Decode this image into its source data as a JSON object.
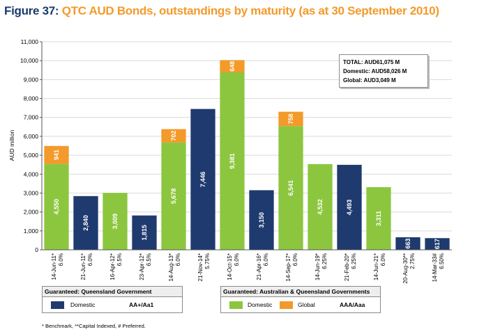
{
  "figure": {
    "number": "Figure 37:",
    "title": "QTC AUD Bonds, outstandings by maturity (as at 30 September 2010)"
  },
  "totals_box": {
    "total": "TOTAL: AUD61,075 M",
    "domestic": "Domestic: AUD58,026 M",
    "global": "Global: AUD3,049 M"
  },
  "legends": {
    "left": {
      "header": "Guaranteed: Queensland Government",
      "item": "Domestic",
      "rating": "AA+/Aa1"
    },
    "right": {
      "header": "Guaranteed: Australian & Queensland Governments",
      "item1": "Domestic",
      "item2": "Global",
      "rating": "AAA/Aaa"
    }
  },
  "footnote": "* Benchmark, **Capital Indexed, # Preferred.",
  "colors": {
    "qld_domestic": "#1f3a6e",
    "aus_domestic": "#8cc63f",
    "aus_global": "#f39a2a",
    "title_blue": "#1a3a6b",
    "title_orange": "#f39a2a"
  },
  "chart_data": {
    "type": "bar",
    "stacked": true,
    "ylabel": "AUD million",
    "ylim": [
      0,
      11000
    ],
    "yticks": [
      0,
      1000,
      2000,
      3000,
      4000,
      5000,
      6000,
      7000,
      8000,
      9000,
      10000,
      11000
    ],
    "ytick_labels": [
      "0",
      "1,000",
      "2,000",
      "3,000",
      "4,000",
      "5,000",
      "6,000",
      "7,000",
      "8,000",
      "9,000",
      "10,000",
      "11,000"
    ],
    "grid": true,
    "categories": [
      "14-Jun-11*",
      "21-Jun-11*",
      "16-Apr-12*",
      "23-Apr-12*",
      "14-Aug-13*",
      "21-Nov-14*",
      "14-Oct-15*",
      "21-Apr-16*",
      "14-Sep-17*",
      "14-Jun-19*",
      "21-Feb-20*",
      "14-Jun-21*",
      "20-Aug-30**",
      "14-Mar-33#"
    ],
    "coupons": [
      "6.0%",
      "6.0%",
      "6.5%",
      "6.5%",
      "6.0%",
      "5.75%",
      "6.0%",
      "6.0%",
      "6.0%",
      "6.25%",
      "6.25%",
      "6.0%",
      "2.75%",
      "6.50%"
    ],
    "bars": [
      {
        "guarantee": "aus",
        "domestic": 4550,
        "domestic_label": "4,550",
        "global": 941,
        "global_label": "941"
      },
      {
        "guarantee": "qld",
        "domestic": 2840,
        "domestic_label": "2,840",
        "global": 0,
        "global_label": ""
      },
      {
        "guarantee": "aus",
        "domestic": 3009,
        "domestic_label": "3,009",
        "global": 0,
        "global_label": ""
      },
      {
        "guarantee": "qld",
        "domestic": 1815,
        "domestic_label": "1,815",
        "global": 0,
        "global_label": ""
      },
      {
        "guarantee": "aus",
        "domestic": 5678,
        "domestic_label": "5,678",
        "global": 702,
        "global_label": "702"
      },
      {
        "guarantee": "qld",
        "domestic": 7446,
        "domestic_label": "7,446",
        "global": 0,
        "global_label": ""
      },
      {
        "guarantee": "aus",
        "domestic": 9381,
        "domestic_label": "9,381",
        "global": 648,
        "global_label": "648"
      },
      {
        "guarantee": "qld",
        "domestic": 3150,
        "domestic_label": "3,150",
        "global": 0,
        "global_label": ""
      },
      {
        "guarantee": "aus",
        "domestic": 6541,
        "domestic_label": "6,541",
        "global": 758,
        "global_label": "758"
      },
      {
        "guarantee": "aus",
        "domestic": 4532,
        "domestic_label": "4,532",
        "global": 0,
        "global_label": ""
      },
      {
        "guarantee": "qld",
        "domestic": 4493,
        "domestic_label": "4,493",
        "global": 0,
        "global_label": ""
      },
      {
        "guarantee": "aus",
        "domestic": 3311,
        "domestic_label": "3,311",
        "global": 0,
        "global_label": ""
      },
      {
        "guarantee": "qld",
        "domestic": 663,
        "domestic_label": "663",
        "global": 0,
        "global_label": ""
      },
      {
        "guarantee": "qld",
        "domestic": 617,
        "domestic_label": "617",
        "global": 0,
        "global_label": ""
      }
    ]
  }
}
